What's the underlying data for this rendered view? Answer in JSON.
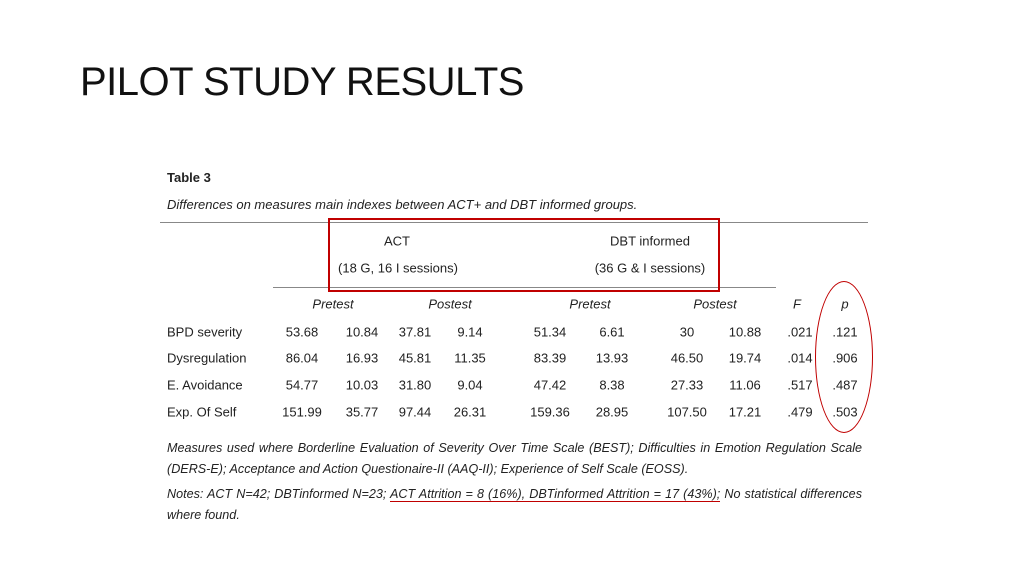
{
  "title": "PILOT STUDY RESULTS",
  "table": {
    "label": "Table 3",
    "caption": "Differences on measures main indexes between ACT+ and DBT informed groups.",
    "groups": [
      {
        "name": "ACT",
        "sessions": "(18 G, 16 I sessions)"
      },
      {
        "name": "DBT informed",
        "sessions": "(36 G & I sessions)"
      }
    ],
    "subheaders": [
      "Pretest",
      "Postest",
      "Pretest",
      "Postest",
      "F",
      "p"
    ],
    "rows": [
      {
        "label": "BPD severity",
        "values": [
          "53.68",
          "10.84",
          "37.81",
          "9.14",
          "51.34",
          "6.61",
          "30",
          "10.88",
          ".021",
          ".121"
        ]
      },
      {
        "label": "Dysregulation",
        "values": [
          "86.04",
          "16.93",
          "45.81",
          "11.35",
          "83.39",
          "13.93",
          "46.50",
          "19.74",
          ".014",
          ".906"
        ]
      },
      {
        "label": "E. Avoidance",
        "values": [
          "54.77",
          "10.03",
          "31.80",
          "9.04",
          "47.42",
          "8.38",
          "27.33",
          "11.06",
          ".517",
          ".487"
        ]
      },
      {
        "label": "Exp. Of Self",
        "values": [
          "151.99",
          "35.77",
          "97.44",
          "26.31",
          "159.36",
          "28.95",
          "107.50",
          "17.21",
          ".479",
          ".503"
        ]
      }
    ],
    "measures_note": "Measures used where Borderline Evaluation of Severity Over Time Scale (BEST); Difficulties in Emotion Regulation Scale (DERS-E); Acceptance and Action Questionaire-II (AAQ-II); Experience of Self Scale (EOSS).",
    "notes_prefix": "Notes: ACT N=42; DBTinformed N=23; ",
    "notes_highlight": "ACT Attrition = 8 (16%), DBTinformed Attrition = 17 (43%);",
    "notes_suffix": " No statistical differences where found."
  },
  "annotation_color": "#c00000"
}
